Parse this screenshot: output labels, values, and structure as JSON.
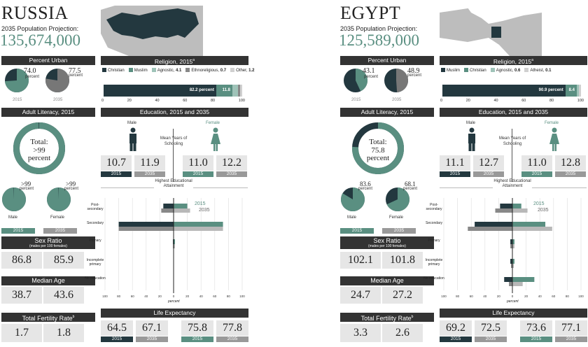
{
  "russia": {
    "name": "RUSSIA",
    "projection_label": "2035 Population Projection:",
    "projection_value": "135,674,000",
    "urban": {
      "title": "Percent Urban",
      "v2015": "74.0",
      "v2035": "77.5",
      "unit": "percent",
      "y1": "2015",
      "y2": "2035",
      "frac2015": 0.74,
      "frac2035": 0.775
    },
    "literacy": {
      "title": "Adult Literacy, 2015",
      "total_label": "Total:",
      "total_value": ">99",
      "unit": "percent",
      "total_frac": 0.995,
      "male": ">99",
      "female": ">99",
      "male_frac": 0.995,
      "female_frac": 0.995,
      "male_label": "Male",
      "female_label": "Female",
      "y1": "2015",
      "y2": "2035"
    },
    "sex_ratio": {
      "title": "Sex Ratio",
      "sub": "(males per 100 females)",
      "v2015": "86.8",
      "v2035": "85.9"
    },
    "median_age": {
      "title": "Median Age",
      "v2015": "38.7",
      "v2035": "43.6"
    },
    "fertility": {
      "title": "Total Fertility Rate",
      "sup": "b",
      "v2015": "1.7",
      "v2035": "1.8"
    },
    "religion": {
      "title": "Religion, 2015",
      "sup": "a",
      "legend": [
        {
          "name": "Christian",
          "value": "",
          "color": "#23383f"
        },
        {
          "name": "Muslim",
          "value": "",
          "color": "#5a8f81"
        },
        {
          "name": "Agnostic",
          "value": "4.1",
          "color": "#9fc3b8"
        },
        {
          "name": "Ethnoreligious",
          "value": "0.7",
          "color": "#888888"
        },
        {
          "name": "Other",
          "value": "1.2",
          "color": "#d0d0d0"
        }
      ],
      "bar": [
        82.2,
        11.8,
        4.1,
        0.7,
        1.2
      ],
      "label1": "82.2 percent",
      "label2": "11.8",
      "ticks": [
        "0",
        "20",
        "40",
        "60",
        "80",
        "100"
      ]
    },
    "education": {
      "title": "Education, 2015 and 2035",
      "male": "Male",
      "female": "Female",
      "mean_label": "Mean Years of Schooling",
      "male2015": "10.7",
      "male2035": "11.9",
      "female2015": "11.0",
      "female2035": "12.2",
      "y1": "2015",
      "y2": "2035",
      "attain_label": "Highest Educational Attainment",
      "cats": [
        "Post-secondary",
        "Secondary",
        "Primary",
        "Incomplete primary",
        "No education"
      ],
      "male_2015": [
        15,
        80,
        1,
        0,
        0
      ],
      "male_2035": [
        18,
        80,
        1,
        0,
        0
      ],
      "female_2015": [
        20,
        72,
        2,
        0,
        0
      ],
      "female_2035": [
        24,
        72,
        2,
        0,
        0
      ],
      "axis_ticks": [
        "100",
        "80",
        "60",
        "40",
        "20",
        "0",
        "20",
        "40",
        "60",
        "80",
        "100"
      ],
      "axis_unit": "percent"
    },
    "life": {
      "title": "Life Expectancy",
      "m2015": "64.5",
      "m2035": "67.1",
      "f2015": "75.8",
      "f2035": "77.8",
      "y1": "2015",
      "y2": "2035"
    }
  },
  "egypt": {
    "name": "EGYPT",
    "projection_label": "2035 Population Projection:",
    "projection_value": "125,589,000",
    "urban": {
      "title": "Percent Urban",
      "v2015": "43.1",
      "v2035": "48.9",
      "unit": "percent",
      "y1": "2015",
      "y2": "2035",
      "frac2015": 0.431,
      "frac2035": 0.489
    },
    "literacy": {
      "title": "Adult Literacy, 2015",
      "total_label": "Total:",
      "total_value": "75.8",
      "unit": "percent",
      "total_frac": 0.758,
      "male": "83.6",
      "female": "68.1",
      "male_frac": 0.836,
      "female_frac": 0.681,
      "male_label": "Male",
      "female_label": "Female",
      "y1": "2015",
      "y2": "2035"
    },
    "sex_ratio": {
      "title": "Sex Ratio",
      "sub": "(males per 100 females)",
      "v2015": "102.1",
      "v2035": "101.8"
    },
    "median_age": {
      "title": "Median Age",
      "v2015": "24.7",
      "v2035": "27.2"
    },
    "fertility": {
      "title": "Total Fertility Rate",
      "sup": "b",
      "v2015": "3.3",
      "v2035": "2.6"
    },
    "religion": {
      "title": "Religion, 2015",
      "sup": "a",
      "legend": [
        {
          "name": "Muslim",
          "value": "",
          "color": "#23383f"
        },
        {
          "name": "Christian",
          "value": "",
          "color": "#5a8f81"
        },
        {
          "name": "Agnostic",
          "value": "0.6",
          "color": "#9fc3b8"
        },
        {
          "name": "Atheist",
          "value": "0.1",
          "color": "#d0d0d0"
        }
      ],
      "bar": [
        90.9,
        8.4,
        0.6,
        0.1
      ],
      "label1": "90.9 percent",
      "label2": "8.4",
      "ticks": [
        "0",
        "20",
        "40",
        "60",
        "80",
        "100"
      ]
    },
    "education": {
      "title": "Education, 2015 and 2035",
      "male": "Male",
      "female": "Female",
      "mean_label": "Mean Years of Schooling",
      "male2015": "11.1",
      "male2035": "12.7",
      "female2015": "11.0",
      "female2035": "12.8",
      "y1": "2015",
      "y2": "2035",
      "attain_label": "Highest Educational Attainment",
      "cats": [
        "Post-secondary",
        "Secondary",
        "Primary",
        "Incomplete primary",
        "No education"
      ],
      "male_2015": [
        18,
        55,
        3,
        3,
        12
      ],
      "male_2035": [
        25,
        65,
        3,
        2,
        5
      ],
      "female_2015": [
        13,
        48,
        3,
        3,
        32
      ],
      "female_2035": [
        22,
        58,
        3,
        2,
        15
      ],
      "axis_ticks": [
        "100",
        "80",
        "60",
        "40",
        "20",
        "0",
        "20",
        "40",
        "60",
        "80",
        "100"
      ],
      "axis_unit": "percent"
    },
    "life": {
      "title": "Life Expectancy",
      "m2015": "69.2",
      "m2035": "72.5",
      "f2015": "73.6",
      "f2035": "77.1",
      "y1": "2015",
      "y2": "2035"
    }
  },
  "colors": {
    "dark": "#23383f",
    "teal": "#5a8f81",
    "grey": "#777777",
    "lightgrey": "#e6e6e6",
    "header": "#333333"
  }
}
